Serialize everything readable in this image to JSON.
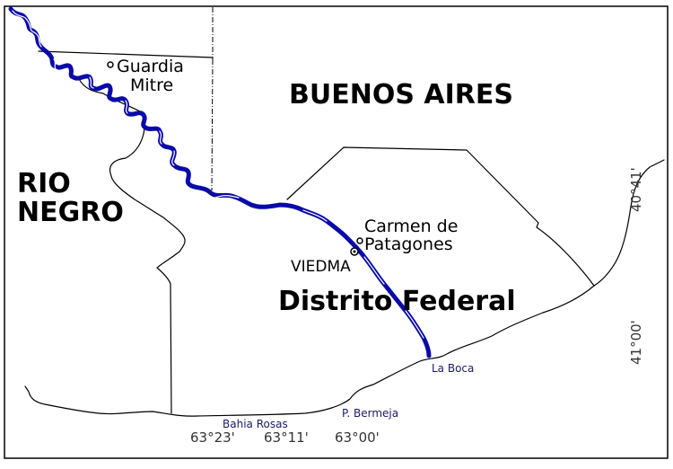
{
  "map": {
    "labels": {
      "buenos_aires": "BUENOS AIRES",
      "rio_negro_line1": "RIO",
      "rio_negro_line2": "NEGRO",
      "distrito_federal": "Distrito Federal",
      "guardia_mitre_line1": "Guardia",
      "guardia_mitre_line2": "Mitre",
      "carmen_line1": "Carmen de",
      "carmen_line2": "Patagones",
      "viedma": "VIEDMA",
      "la_boca": "La Boca",
      "bahia_rosas": "Bahia Rosas",
      "p_bermeja": "P. Bermeja"
    },
    "longitude_ticks": [
      "63°23'",
      "63°11'",
      "63°00'"
    ],
    "latitude_ticks": [
      "40°41'",
      "41°00'"
    ],
    "colors": {
      "river": "#0a0aa8",
      "boundary": "#000000",
      "coastal_label": "#1a1a66",
      "background": "#ffffff"
    },
    "icons": {
      "town_marker": "small-circle",
      "capital_marker": "circle-with-dot"
    }
  }
}
